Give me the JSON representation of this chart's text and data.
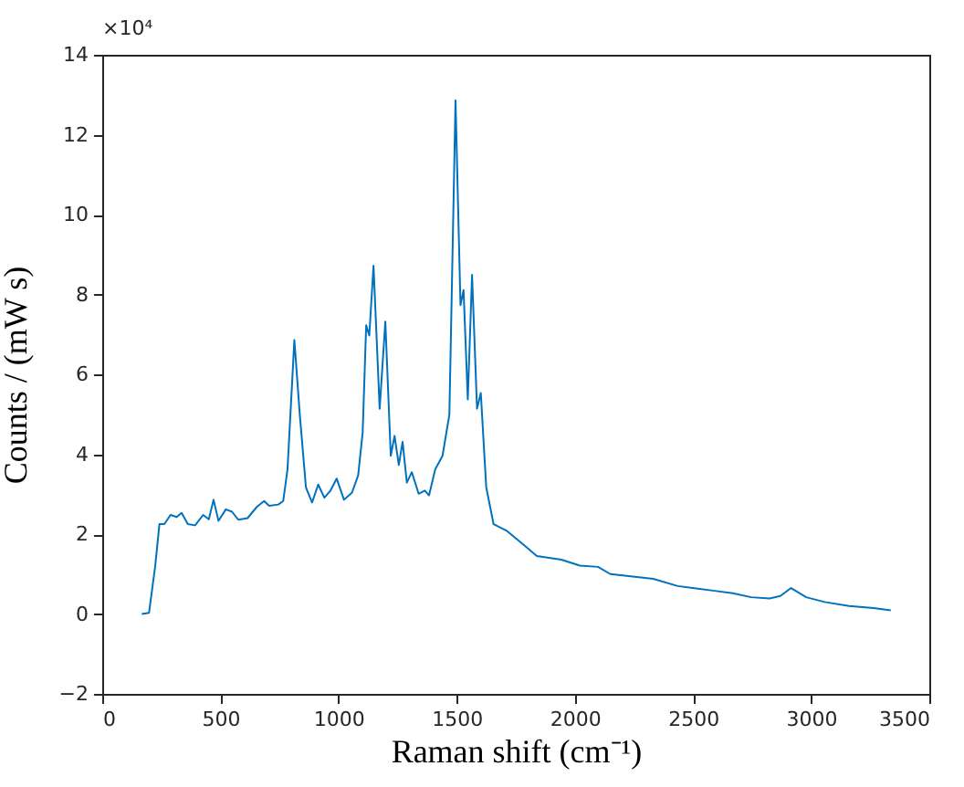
{
  "chart_data": {
    "type": "line",
    "xlabel": "Raman shift (cm⁻¹)",
    "ylabel": "Counts / (mW s)",
    "annotations": [
      "×10⁴"
    ],
    "xlim": [
      0,
      3500
    ],
    "xticks": [
      0,
      500,
      1000,
      1500,
      2000,
      2500,
      3000,
      3500
    ],
    "ylim": [
      -2,
      14
    ],
    "yticks": [
      -2,
      0,
      2,
      4,
      6,
      8,
      10,
      12,
      14
    ],
    "grid": false,
    "series": [
      {
        "color": "#0072bd",
        "x": [
          167,
          198,
          224,
          242,
          263,
          289,
          315,
          336,
          362,
          393,
          427,
          451,
          471,
          492,
          523,
          549,
          576,
          615,
          654,
          685,
          706,
          745,
          766,
          784,
          813,
          836,
          862,
          888,
          914,
          940,
          966,
          992,
          1023,
          1057,
          1083,
          1102,
          1117,
          1130,
          1148,
          1174,
          1198,
          1221,
          1237,
          1255,
          1271,
          1289,
          1310,
          1339,
          1365,
          1383,
          1409,
          1440,
          1469,
          1495,
          1516,
          1529,
          1547,
          1565,
          1586,
          1602,
          1625,
          1656,
          1710,
          1788,
          1839,
          1943,
          2021,
          2098,
          2150,
          2228,
          2332,
          2435,
          2513,
          2591,
          2668,
          2746,
          2824,
          2870,
          2915,
          2979,
          3057,
          3161,
          3264,
          3337
        ],
        "values": [
          0,
          0.03,
          1.19,
          2.25,
          2.25,
          2.48,
          2.43,
          2.53,
          2.25,
          2.22,
          2.48,
          2.37,
          2.86,
          2.33,
          2.62,
          2.56,
          2.36,
          2.4,
          2.68,
          2.83,
          2.71,
          2.74,
          2.83,
          3.62,
          6.86,
          4.99,
          3.17,
          2.79,
          3.24,
          2.91,
          3.09,
          3.39,
          2.86,
          3.04,
          3.47,
          4.54,
          7.23,
          6.97,
          8.72,
          5.14,
          7.32,
          3.96,
          4.46,
          3.73,
          4.31,
          3.29,
          3.55,
          3.01,
          3.09,
          2.97,
          3.62,
          3.96,
          4.99,
          12.86,
          7.73,
          8.11,
          5.37,
          8.49,
          5.14,
          5.53,
          3.17,
          2.25,
          2.09,
          1.71,
          1.45,
          1.36,
          1.21,
          1.18,
          1.0,
          0.95,
          0.88,
          0.7,
          0.64,
          0.58,
          0.52,
          0.42,
          0.39,
          0.45,
          0.65,
          0.42,
          0.3,
          0.2,
          0.15,
          0.09
        ]
      }
    ]
  }
}
